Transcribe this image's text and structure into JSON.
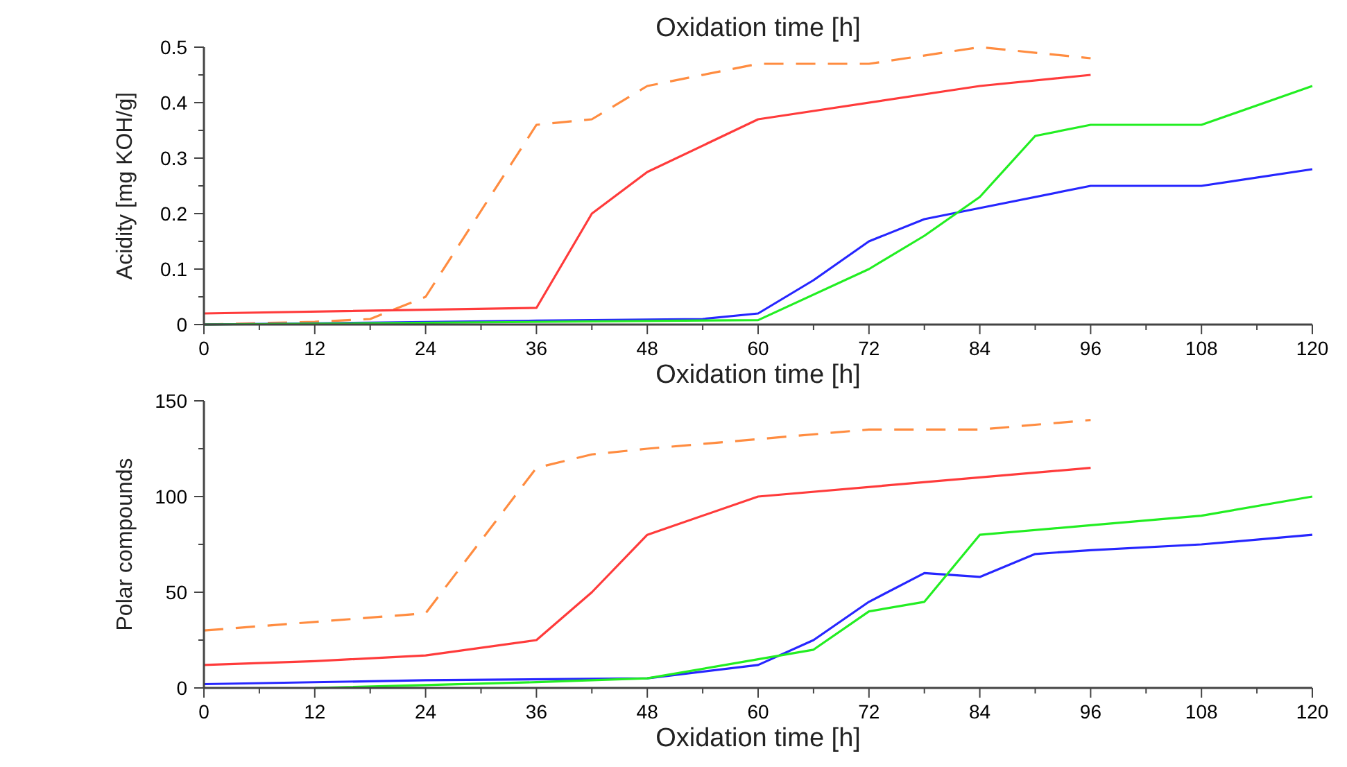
{
  "chart_data": [
    {
      "type": "line",
      "title": "Oxidation time [h]",
      "xlabel": "Oxidation time [h]",
      "ylabel": "Acidity [mg KOH/g]",
      "xlim": [
        0,
        120
      ],
      "ylim": [
        0,
        0.5
      ],
      "xticks": [
        0,
        {
          "value": 6,
          "label": null
        },
        12,
        {
          "value": 18,
          "label": null
        },
        24,
        {
          "value": 30,
          "label": null
        },
        36,
        {
          "value": 42,
          "label": null
        },
        48,
        {
          "value": 54,
          "label": null
        },
        60,
        {
          "value": 66,
          "label": null
        },
        72,
        {
          "value": 78,
          "label": null
        },
        84,
        {
          "value": 90,
          "label": null
        },
        96,
        {
          "value": 102,
          "label": null
        },
        108,
        {
          "value": 114,
          "label": null
        },
        120
      ],
      "yticks": [
        0,
        {
          "value": 0.05,
          "label": null
        },
        0.1,
        {
          "value": 0.15,
          "label": null
        },
        0.2,
        {
          "value": 0.25,
          "label": null
        },
        0.3,
        {
          "value": 0.35,
          "label": null
        },
        0.4,
        {
          "value": 0.45,
          "label": null
        },
        0.5
      ],
      "series": [
        {
          "color": "#ff8c40",
          "line_style": "dashed",
          "x": [
            0,
            12,
            18,
            24,
            36,
            42,
            48,
            60,
            72,
            84,
            96
          ],
          "values": [
            0,
            0.005,
            0.01,
            0.05,
            0.36,
            0.37,
            0.43,
            0.47,
            0.47,
            0.5,
            0.48
          ]
        },
        {
          "color": "#ff3b3b",
          "line_style": "solid",
          "x": [
            0,
            36,
            42,
            48,
            60,
            84,
            96
          ],
          "values": [
            0.02,
            0.03,
            0.2,
            0.275,
            0.37,
            0.43,
            0.45
          ]
        },
        {
          "color": "#2626ff",
          "line_style": "solid",
          "x": [
            0,
            36,
            54,
            60,
            66,
            72,
            78,
            84,
            96,
            108,
            120
          ],
          "values": [
            0,
            0.007,
            0.01,
            0.02,
            0.08,
            0.15,
            0.19,
            0.21,
            0.25,
            0.25,
            0.28
          ]
        },
        {
          "color": "#22ee22",
          "line_style": "solid",
          "x": [
            0,
            60,
            72,
            78,
            84,
            90,
            96,
            108,
            120
          ],
          "values": [
            0,
            0.008,
            0.1,
            0.16,
            0.23,
            0.34,
            0.36,
            0.36,
            0.43
          ]
        }
      ]
    },
    {
      "type": "line",
      "xlabel": "Oxidation time [h]",
      "ylabel": "Polar compounds",
      "xlim": [
        0,
        120
      ],
      "ylim": [
        0,
        150
      ],
      "xticks": [
        0,
        {
          "value": 6,
          "label": null
        },
        12,
        {
          "value": 18,
          "label": null
        },
        24,
        {
          "value": 30,
          "label": null
        },
        36,
        {
          "value": 42,
          "label": null
        },
        48,
        {
          "value": 54,
          "label": null
        },
        60,
        {
          "value": 66,
          "label": null
        },
        72,
        {
          "value": 78,
          "label": null
        },
        84,
        {
          "value": 90,
          "label": null
        },
        96,
        {
          "value": 102,
          "label": null
        },
        108,
        {
          "value": 114,
          "label": null
        },
        120
      ],
      "yticks": [
        0,
        {
          "value": 25,
          "label": null
        },
        50,
        {
          "value": 75,
          "label": null
        },
        100,
        {
          "value": 125,
          "label": null
        },
        150
      ],
      "series": [
        {
          "color": "#ff8c40",
          "line_style": "dashed",
          "x": [
            0,
            24,
            36,
            42,
            48,
            60,
            72,
            84,
            96
          ],
          "values": [
            30,
            39,
            115,
            122,
            125,
            130,
            135,
            135,
            140
          ]
        },
        {
          "color": "#ff3b3b",
          "line_style": "solid",
          "x": [
            0,
            12,
            24,
            36,
            42,
            48,
            60,
            84,
            96
          ],
          "values": [
            12,
            14,
            17,
            25,
            50,
            80,
            100,
            110,
            115
          ]
        },
        {
          "color": "#2626ff",
          "line_style": "solid",
          "x": [
            0,
            24,
            48,
            60,
            66,
            72,
            78,
            84,
            90,
            96,
            108,
            120
          ],
          "values": [
            2,
            4,
            5,
            12,
            25,
            45,
            60,
            58,
            70,
            72,
            75,
            80
          ]
        },
        {
          "color": "#22ee22",
          "line_style": "solid",
          "x": [
            12,
            36,
            48,
            60,
            66,
            72,
            78,
            84,
            96,
            108,
            120
          ],
          "values": [
            0,
            3,
            5,
            15,
            20,
            40,
            45,
            80,
            85,
            90,
            100
          ]
        }
      ]
    }
  ]
}
